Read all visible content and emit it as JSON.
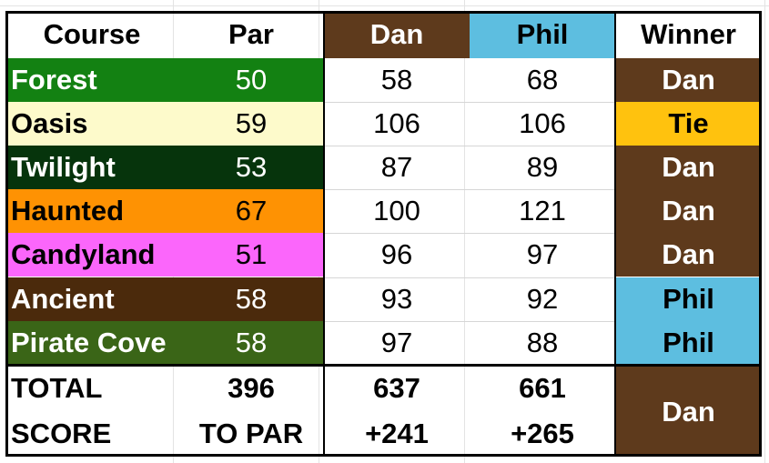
{
  "header": {
    "course": "Course",
    "par": "Par",
    "dan": "Dan",
    "phil": "Phil",
    "winner": "Winner"
  },
  "colors": {
    "dan_brown": "#5e3a1c",
    "phil_blue": "#5dbee0",
    "tie_yellow": "#ffc20e"
  },
  "rows": [
    {
      "course": "Forest",
      "par": "50",
      "dan": "58",
      "phil": "68",
      "winner": "Dan",
      "course_bg": "#138112",
      "course_color": "#ffffff"
    },
    {
      "course": "Oasis",
      "par": "59",
      "dan": "106",
      "phil": "106",
      "winner": "Tie",
      "course_bg": "#fdfacb",
      "course_color": "#000000"
    },
    {
      "course": "Twilight",
      "par": "53",
      "dan": "87",
      "phil": "89",
      "winner": "Dan",
      "course_bg": "#06340c",
      "course_color": "#ffffff"
    },
    {
      "course": "Haunted",
      "par": "67",
      "dan": "100",
      "phil": "121",
      "winner": "Dan",
      "course_bg": "#fe9203",
      "course_color": "#000000"
    },
    {
      "course": "Candyland",
      "par": "51",
      "dan": "96",
      "phil": "97",
      "winner": "Dan",
      "course_bg": "#fb66fb",
      "course_color": "#000000"
    },
    {
      "course": "Ancient",
      "par": "58",
      "dan": "93",
      "phil": "92",
      "winner": "Phil",
      "course_bg": "#4b2a0c",
      "course_color": "#ffffff"
    },
    {
      "course": "Pirate Cove",
      "par": "58",
      "dan": "97",
      "phil": "88",
      "winner": "Phil",
      "course_bg": "#3a6517",
      "course_color": "#ffffff"
    }
  ],
  "total": {
    "label": "TOTAL",
    "par": "396",
    "dan": "637",
    "phil": "661"
  },
  "score": {
    "label": "SCORE",
    "par": "TO PAR",
    "dan": "+241",
    "phil": "+265"
  },
  "overall_winner": "Dan"
}
